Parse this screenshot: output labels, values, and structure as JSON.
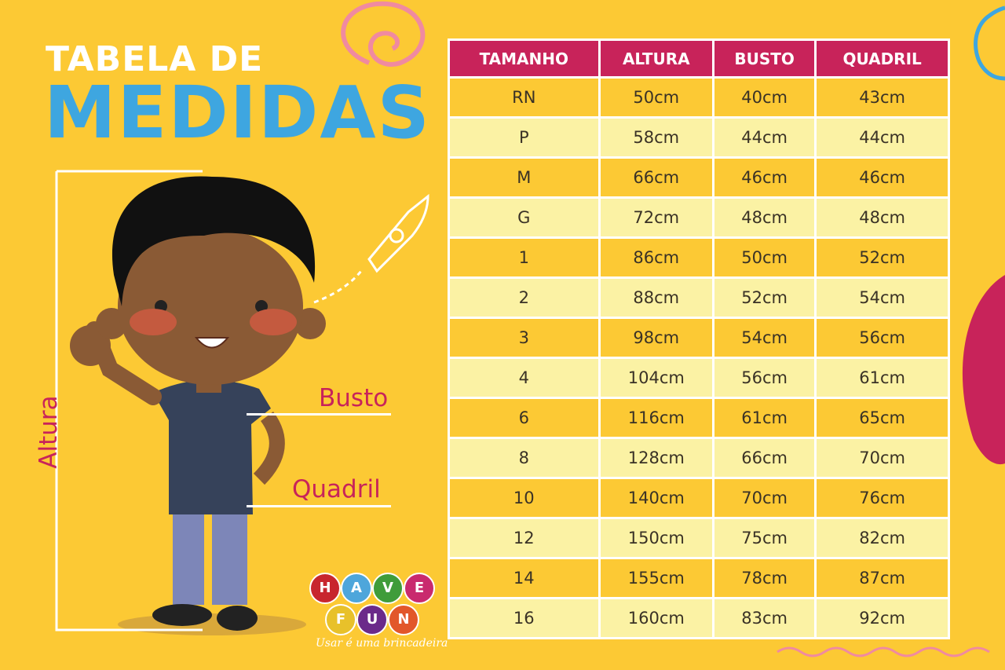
{
  "title": {
    "line1": "TABELA DE",
    "line2": "MEDIDAS"
  },
  "labels": {
    "altura": "Altura",
    "busto": "Busto",
    "quadril": "Quadril"
  },
  "logo": {
    "letters": [
      "H",
      "A",
      "V",
      "E",
      "F",
      "U",
      "N"
    ],
    "tagline": "Usar é uma brincadeira",
    "colors": [
      "#c8262e",
      "#4ea6db",
      "#3f9c3a",
      "#c92a6e",
      "#e8c12a",
      "#6b2a8a",
      "#e2572a"
    ]
  },
  "table": {
    "headers": [
      "TAMANHO",
      "ALTURA",
      "BUSTO",
      "QUADRIL"
    ],
    "rows": [
      [
        "RN",
        "50cm",
        "40cm",
        "43cm"
      ],
      [
        "P",
        "58cm",
        "44cm",
        "44cm"
      ],
      [
        "M",
        "66cm",
        "46cm",
        "46cm"
      ],
      [
        "G",
        "72cm",
        "48cm",
        "48cm"
      ],
      [
        "1",
        "86cm",
        "50cm",
        "52cm"
      ],
      [
        "2",
        "88cm",
        "52cm",
        "54cm"
      ],
      [
        "3",
        "98cm",
        "54cm",
        "56cm"
      ],
      [
        "4",
        "104cm",
        "56cm",
        "61cm"
      ],
      [
        "6",
        "116cm",
        "61cm",
        "65cm"
      ],
      [
        "8",
        "128cm",
        "66cm",
        "70cm"
      ],
      [
        "10",
        "140cm",
        "70cm",
        "76cm"
      ],
      [
        "12",
        "150cm",
        "75cm",
        "82cm"
      ],
      [
        "14",
        "155cm",
        "78cm",
        "87cm"
      ],
      [
        "16",
        "160cm",
        "83cm",
        "92cm"
      ]
    ]
  },
  "colors": {
    "background": "#fcc934",
    "header": "#c8235a",
    "title_blue": "#3ea6e0",
    "row_alt": "#fbf2a4"
  }
}
